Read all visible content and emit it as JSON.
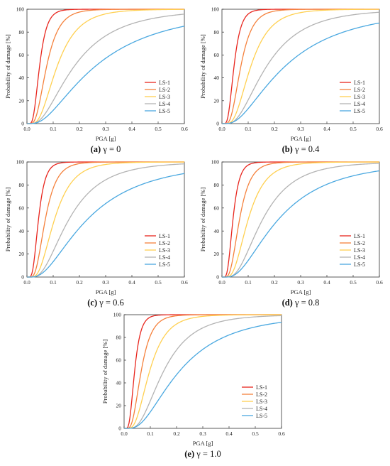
{
  "figure": {
    "legend_labels": [
      "LS-1",
      "LS-2",
      "LS-3",
      "LS-4",
      "LS-5"
    ],
    "series_colors": [
      "#e8261e",
      "#f5813c",
      "#ffd050",
      "#b3b3b3",
      "#4aa8e0"
    ]
  },
  "chart_data": [
    {
      "type": "line",
      "caption_letter": "(a)",
      "caption_rest": " γ = 0",
      "xlabel": "PGA [g]",
      "ylabel": "Probability of damage [%]",
      "xlim": [
        0,
        0.6
      ],
      "ylim": [
        0,
        100
      ],
      "xticks": [
        "0.0",
        "0.1",
        "0.2",
        "0.3",
        "0.4",
        "0.5",
        "0.6"
      ],
      "yticks": [
        "0",
        "20",
        "40",
        "60",
        "80",
        "100"
      ],
      "legend_position": "lower-right",
      "grid": false,
      "series": [
        {
          "name": "LS-1",
          "median": 0.048,
          "beta": 0.45
        },
        {
          "name": "LS-2",
          "median": 0.075,
          "beta": 0.5
        },
        {
          "name": "LS-3",
          "median": 0.115,
          "beta": 0.55
        },
        {
          "name": "LS-4",
          "median": 0.18,
          "beta": 0.7
        },
        {
          "name": "LS-5",
          "median": 0.26,
          "beta": 0.8
        }
      ]
    },
    {
      "type": "line",
      "caption_letter": "(b)",
      "caption_rest": " γ = 0.4",
      "xlabel": "PGA [g]",
      "ylabel": "Probability of damage [%]",
      "xlim": [
        0,
        0.6
      ],
      "ylim": [
        0,
        100
      ],
      "xticks": [
        "0.0",
        "0.1",
        "0.2",
        "0.3",
        "0.4",
        "0.5",
        "0.6"
      ],
      "yticks": [
        "0",
        "20",
        "40",
        "60",
        "80",
        "100"
      ],
      "legend_position": "lower-right",
      "grid": false,
      "series": [
        {
          "name": "LS-1",
          "median": 0.046,
          "beta": 0.45
        },
        {
          "name": "LS-2",
          "median": 0.072,
          "beta": 0.48
        },
        {
          "name": "LS-3",
          "median": 0.11,
          "beta": 0.53
        },
        {
          "name": "LS-4",
          "median": 0.17,
          "beta": 0.65
        },
        {
          "name": "LS-5",
          "median": 0.24,
          "beta": 0.78
        }
      ]
    },
    {
      "type": "line",
      "caption_letter": "(c)",
      "caption_rest": " γ = 0.6",
      "xlabel": "PGA [g]",
      "ylabel": "Probability of damage [%]",
      "xlim": [
        0,
        0.6
      ],
      "ylim": [
        0,
        100
      ],
      "xticks": [
        "0.0",
        "0.1",
        "0.2",
        "0.3",
        "0.4",
        "0.5",
        "0.6"
      ],
      "yticks": [
        "0",
        "20",
        "40",
        "60",
        "80",
        "100"
      ],
      "legend_position": "lower-right",
      "grid": false,
      "series": [
        {
          "name": "LS-1",
          "median": 0.044,
          "beta": 0.45
        },
        {
          "name": "LS-2",
          "median": 0.07,
          "beta": 0.48
        },
        {
          "name": "LS-3",
          "median": 0.105,
          "beta": 0.52
        },
        {
          "name": "LS-4",
          "median": 0.16,
          "beta": 0.62
        },
        {
          "name": "LS-5",
          "median": 0.23,
          "beta": 0.75
        }
      ]
    },
    {
      "type": "line",
      "caption_letter": "(d)",
      "caption_rest": " γ = 0.8",
      "xlabel": "PGA [g]",
      "ylabel": "Probability of damage [%]",
      "xlim": [
        0,
        0.6
      ],
      "ylim": [
        0,
        100
      ],
      "xticks": [
        "0.0",
        "0.1",
        "0.2",
        "0.3",
        "0.4",
        "0.5",
        "0.6"
      ],
      "yticks": [
        "0",
        "20",
        "40",
        "60",
        "80",
        "100"
      ],
      "legend_position": "lower-right",
      "grid": false,
      "series": [
        {
          "name": "LS-1",
          "median": 0.042,
          "beta": 0.45
        },
        {
          "name": "LS-2",
          "median": 0.067,
          "beta": 0.48
        },
        {
          "name": "LS-3",
          "median": 0.1,
          "beta": 0.52
        },
        {
          "name": "LS-4",
          "median": 0.155,
          "beta": 0.6
        },
        {
          "name": "LS-5",
          "median": 0.215,
          "beta": 0.72
        }
      ]
    },
    {
      "type": "line",
      "caption_letter": "(e)",
      "caption_rest": " γ = 1.0",
      "xlabel": "PGA [g]",
      "ylabel": "Probability of damage [%]",
      "xlim": [
        0,
        0.6
      ],
      "ylim": [
        0,
        100
      ],
      "xticks": [
        "0.0",
        "0.1",
        "0.2",
        "0.3",
        "0.4",
        "0.5",
        "0.6"
      ],
      "yticks": [
        "0",
        "20",
        "40",
        "60",
        "80",
        "100"
      ],
      "legend_position": "lower-right",
      "grid": false,
      "series": [
        {
          "name": "LS-1",
          "median": 0.04,
          "beta": 0.45
        },
        {
          "name": "LS-2",
          "median": 0.065,
          "beta": 0.48
        },
        {
          "name": "LS-3",
          "median": 0.097,
          "beta": 0.52
        },
        {
          "name": "LS-4",
          "median": 0.15,
          "beta": 0.58
        },
        {
          "name": "LS-5",
          "median": 0.21,
          "beta": 0.7
        }
      ]
    }
  ]
}
